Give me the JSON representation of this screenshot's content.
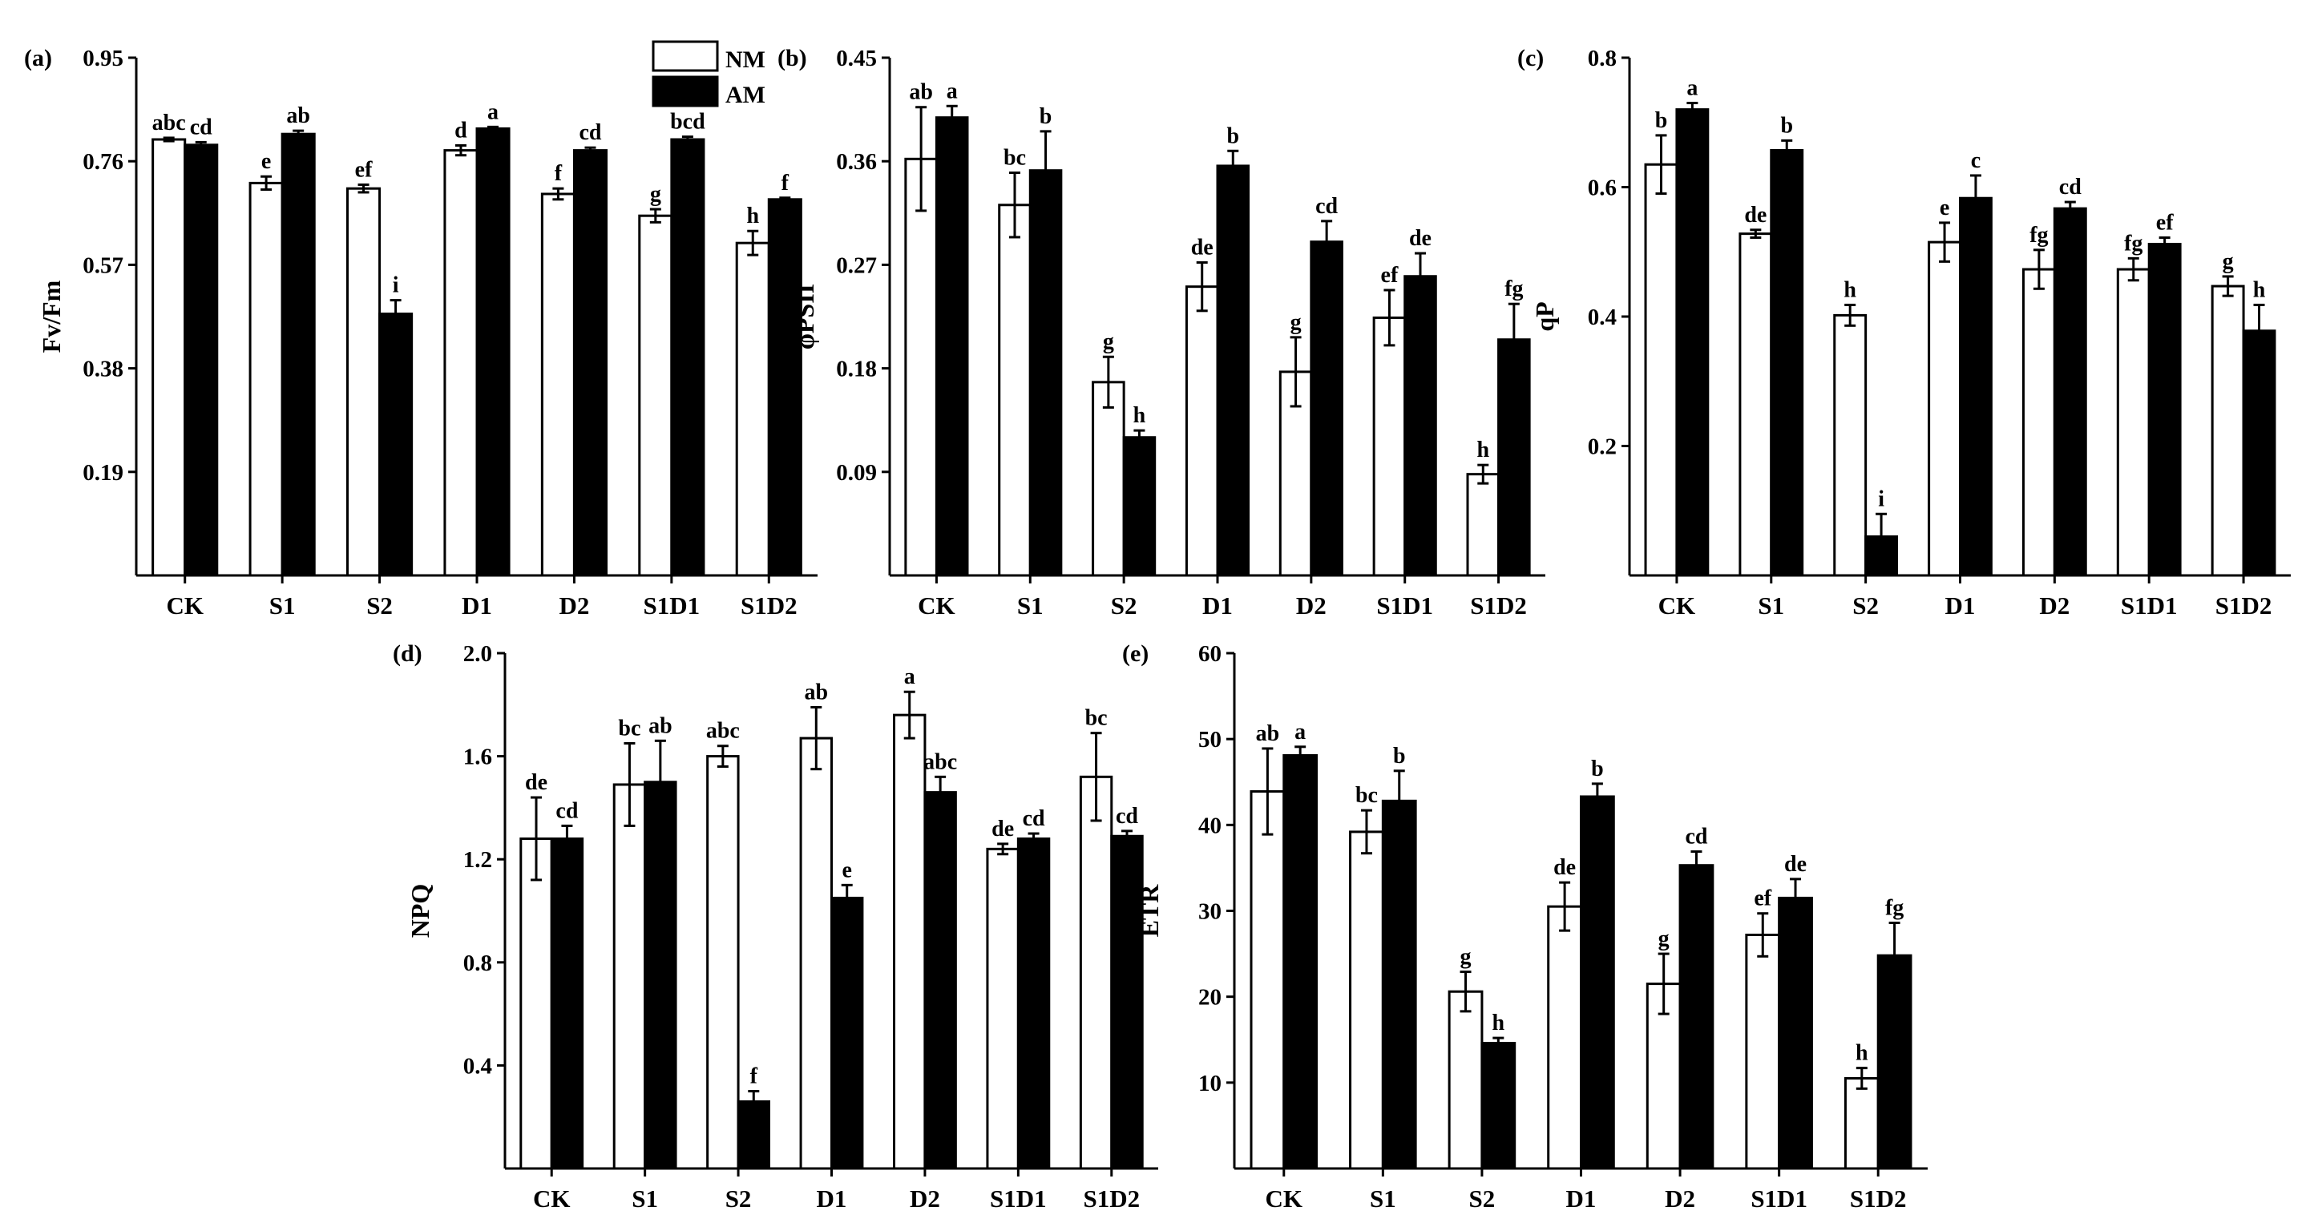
{
  "legend": {
    "nm_label": "NM",
    "am_label": "AM"
  },
  "chart_data": [
    {
      "type": "bar",
      "panel_label": "(a)",
      "ylabel": "Fv/Fm",
      "categories": [
        "CK",
        "S1",
        "S2",
        "D1",
        "D2",
        "S1D1",
        "S1D2"
      ],
      "ylim": [
        0,
        0.95
      ],
      "yticks": [
        0.19,
        0.38,
        0.57,
        0.76,
        0.95
      ],
      "ytick_labels": [
        "0.19",
        "0.38",
        "0.57",
        "0.76",
        "0.95"
      ],
      "series": [
        {
          "name": "NM",
          "values": [
            0.8,
            0.72,
            0.71,
            0.78,
            0.7,
            0.66,
            0.61
          ],
          "errors": [
            0.003,
            0.012,
            0.007,
            0.009,
            0.01,
            0.012,
            0.022
          ],
          "letters": [
            "abc",
            "e",
            "ef",
            "d",
            "f",
            "g",
            "h"
          ]
        },
        {
          "name": "AM",
          "values": [
            0.79,
            0.81,
            0.48,
            0.82,
            0.78,
            0.8,
            0.69
          ],
          "errors": [
            0.005,
            0.006,
            0.025,
            0.003,
            0.005,
            0.005,
            0.003
          ],
          "letters": [
            "cd",
            "ab",
            "i",
            "a",
            "cd",
            "bcd",
            "f"
          ]
        }
      ]
    },
    {
      "type": "bar",
      "panel_label": "(b)",
      "ylabel": "φPSII",
      "categories": [
        "CK",
        "S1",
        "S2",
        "D1",
        "D2",
        "S1D1",
        "S1D2"
      ],
      "ylim": [
        0,
        0.45
      ],
      "yticks": [
        0.09,
        0.18,
        0.27,
        0.36,
        0.45
      ],
      "ytick_labels": [
        "0.09",
        "0.18",
        "0.27",
        "0.36",
        "0.45"
      ],
      "series": [
        {
          "name": "NM",
          "values": [
            0.362,
            0.322,
            0.168,
            0.251,
            0.177,
            0.224,
            0.088
          ],
          "errors": [
            0.045,
            0.028,
            0.022,
            0.021,
            0.03,
            0.024,
            0.008
          ],
          "letters": [
            "ab",
            "bc",
            "g",
            "de",
            "g",
            "ef",
            "h"
          ]
        },
        {
          "name": "AM",
          "values": [
            0.398,
            0.352,
            0.12,
            0.356,
            0.29,
            0.26,
            0.205
          ],
          "errors": [
            0.01,
            0.034,
            0.006,
            0.013,
            0.018,
            0.02,
            0.031
          ],
          "letters": [
            "a",
            "b",
            "h",
            "b",
            "cd",
            "de",
            "fg"
          ]
        }
      ]
    },
    {
      "type": "bar",
      "panel_label": "(c)",
      "ylabel": "qP",
      "categories": [
        "CK",
        "S1",
        "S2",
        "D1",
        "D2",
        "S1D1",
        "S1D2"
      ],
      "ylim": [
        0,
        0.8
      ],
      "yticks": [
        0.2,
        0.4,
        0.6,
        0.8
      ],
      "ytick_labels": [
        "0.2",
        "0.4",
        "0.6",
        "0.8"
      ],
      "series": [
        {
          "name": "NM",
          "values": [
            0.635,
            0.528,
            0.402,
            0.515,
            0.473,
            0.473,
            0.447
          ],
          "errors": [
            0.045,
            0.006,
            0.016,
            0.03,
            0.03,
            0.017,
            0.015
          ],
          "letters": [
            "b",
            "de",
            "h",
            "e",
            "fg",
            "fg",
            "g"
          ]
        },
        {
          "name": "AM",
          "values": [
            0.72,
            0.657,
            0.06,
            0.583,
            0.567,
            0.512,
            0.378
          ],
          "errors": [
            0.01,
            0.015,
            0.035,
            0.035,
            0.01,
            0.01,
            0.04
          ],
          "letters": [
            "a",
            "b",
            "i",
            "c",
            "cd",
            "ef",
            "h"
          ]
        }
      ]
    },
    {
      "type": "bar",
      "panel_label": "(d)",
      "ylabel": "NPQ",
      "categories": [
        "CK",
        "S1",
        "S2",
        "D1",
        "D2",
        "S1D1",
        "S1D2"
      ],
      "ylim": [
        0,
        2.0
      ],
      "yticks": [
        0.4,
        0.8,
        1.2,
        1.6,
        2.0
      ],
      "ytick_labels": [
        "0.4",
        "0.8",
        "1.2",
        "1.6",
        "2.0"
      ],
      "series": [
        {
          "name": "NM",
          "values": [
            1.28,
            1.49,
            1.6,
            1.67,
            1.76,
            1.24,
            1.52
          ],
          "errors": [
            0.16,
            0.16,
            0.04,
            0.12,
            0.09,
            0.02,
            0.17
          ],
          "letters": [
            "de",
            "bc",
            "abc",
            "ab",
            "a",
            "de",
            "bc"
          ]
        },
        {
          "name": "AM",
          "values": [
            1.28,
            1.5,
            0.26,
            1.05,
            1.46,
            1.28,
            1.29
          ],
          "errors": [
            0.05,
            0.16,
            0.04,
            0.05,
            0.06,
            0.02,
            0.02
          ],
          "letters": [
            "cd",
            "ab",
            "f",
            "e",
            "abc",
            "cd",
            "cd"
          ]
        }
      ]
    },
    {
      "type": "bar",
      "panel_label": "(e)",
      "ylabel": "ETR",
      "categories": [
        "CK",
        "S1",
        "S2",
        "D1",
        "D2",
        "S1D1",
        "S1D2"
      ],
      "ylim": [
        0,
        60
      ],
      "yticks": [
        10,
        20,
        30,
        40,
        50,
        60
      ],
      "ytick_labels": [
        "10",
        "20",
        "30",
        "40",
        "50",
        "60"
      ],
      "series": [
        {
          "name": "NM",
          "values": [
            43.9,
            39.2,
            20.6,
            30.5,
            21.5,
            27.2,
            10.5
          ],
          "errors": [
            5.0,
            2.5,
            2.3,
            2.8,
            3.5,
            2.5,
            1.2
          ],
          "letters": [
            "ab",
            "bc",
            "g",
            "de",
            "g",
            "ef",
            "h"
          ]
        },
        {
          "name": "AM",
          "values": [
            48.1,
            42.8,
            14.6,
            43.3,
            35.3,
            31.5,
            24.8
          ],
          "errors": [
            1.0,
            3.5,
            0.6,
            1.5,
            1.6,
            2.2,
            3.8
          ],
          "letters": [
            "a",
            "b",
            "h",
            "b",
            "cd",
            "de",
            "fg"
          ]
        }
      ]
    }
  ]
}
